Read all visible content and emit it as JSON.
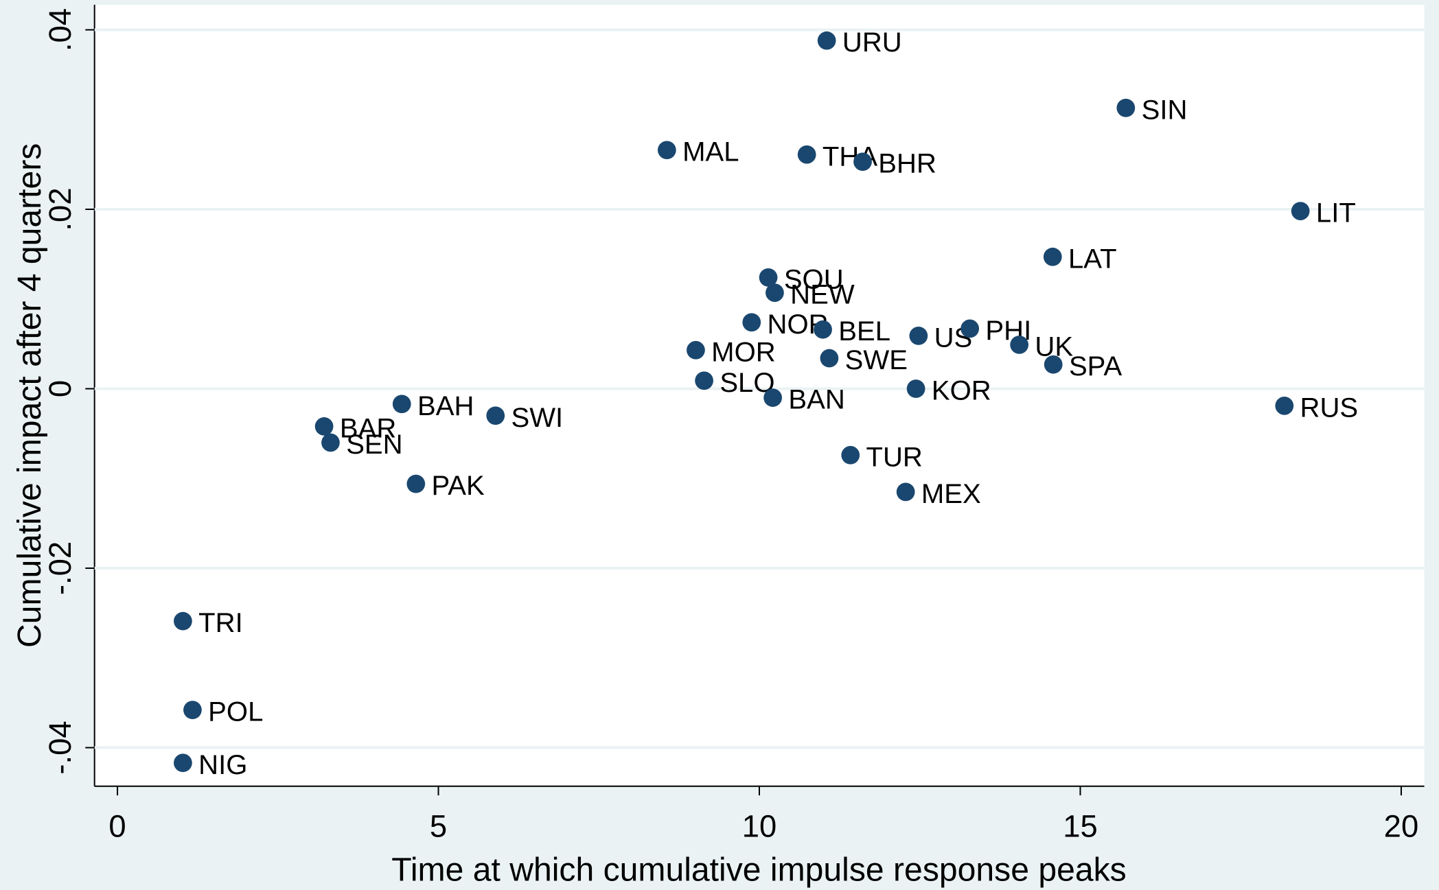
{
  "chart_data": {
    "type": "scatter",
    "x_label": "Time at which cumulative impulse response peaks",
    "y_label": "Cumulative impact after 4 quarters",
    "color": "#1a476f",
    "grid": true,
    "xlim": [
      -0.357,
      20.36
    ],
    "ylim": [
      -0.0443,
      0.0428
    ],
    "xticks": [
      0,
      5,
      10,
      15,
      20
    ],
    "yticks": [
      {
        "value": -0.04,
        "label": "-.04"
      },
      {
        "value": -0.02,
        "label": "-.02"
      },
      0,
      {
        "value": 0.02,
        "label": ".02"
      },
      {
        "value": 0.04,
        "label": ".04"
      }
    ],
    "labels": [
      "URU",
      "SIN",
      "MAL",
      "THA",
      "BHR",
      "LIT",
      "LAT",
      "SOU",
      "NEW",
      "NOR",
      "BEL",
      "US",
      "PHI",
      "UK",
      "SPA",
      "MOR",
      "SWE",
      "SLO",
      "KOR",
      "BAN",
      "RUS",
      "BAH",
      "SWI",
      "BAR",
      "SEN",
      "PAK",
      "TUR",
      "MEX",
      "TRI",
      "POL",
      "NIG"
    ],
    "x": [
      11.05,
      15.71,
      8.56,
      10.74,
      11.61,
      18.43,
      14.57,
      10.14,
      10.24,
      9.88,
      10.99,
      12.48,
      13.28,
      14.05,
      14.58,
      9.01,
      11.09,
      9.14,
      12.44,
      10.21,
      18.18,
      4.43,
      5.89,
      3.22,
      3.32,
      4.65,
      11.42,
      12.28,
      1.02,
      1.17,
      1.02
    ],
    "values": [
      0.0388,
      0.0313,
      0.0266,
      0.0261,
      0.0253,
      0.0198,
      0.0147,
      0.0124,
      0.0107,
      0.0074,
      0.0066,
      0.0059,
      0.0067,
      0.0049,
      0.0027,
      0.0043,
      0.0034,
      0.0009,
      0.0,
      -0.001,
      -0.0019,
      -0.0017,
      -0.003,
      -0.0042,
      -0.006,
      -0.0106,
      -0.0074,
      -0.0115,
      -0.0259,
      -0.0358,
      -0.0417
    ]
  }
}
